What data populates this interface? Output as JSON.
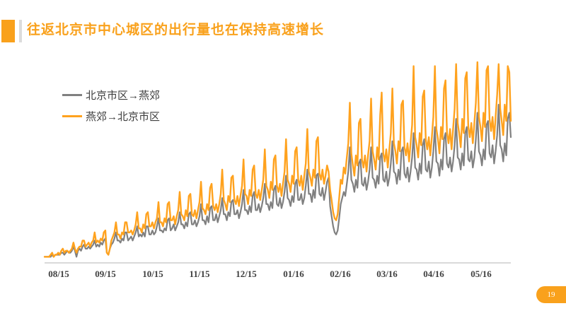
{
  "slide": {
    "title": "往返北京市中心城区的出行量也在保持高速增长",
    "page_number": "19",
    "accent_color": "#F9A11C"
  },
  "legend": {
    "items": [
      {
        "label": "北京市区→燕郊",
        "color": "#808080"
      },
      {
        "label": "燕郊→北京市区",
        "color": "#FFA21E"
      }
    ]
  },
  "chart_data": {
    "type": "line",
    "title": "",
    "xlabel": "",
    "ylabel": "",
    "categories": [
      "08/15",
      "09/15",
      "10/15",
      "11/15",
      "12/15",
      "01/16",
      "02/16",
      "03/16",
      "04/16",
      "05/16"
    ],
    "x_unit": "daily points from Aug 2015 to early Jun 2016",
    "ylim": [
      0,
      100
    ],
    "y_units": "relative trip volume (y axis not labeled in original)",
    "grid": false,
    "y_axis_shown": false,
    "legend_position": "inside top-left",
    "annotations": [
      "sharp dip around early Feb 2016 (Chinese New Year week)",
      "strong upward trend with weekly spikes"
    ],
    "series": [
      {
        "name": "北京市区→燕郊",
        "color": "#808080",
        "values": [
          3,
          3,
          3,
          3,
          3,
          4,
          3,
          4,
          4,
          4,
          4,
          5,
          5,
          4,
          5,
          6,
          5,
          5,
          6,
          8,
          6,
          3,
          6,
          7,
          6,
          8,
          9,
          7,
          7,
          8,
          7,
          8,
          9,
          11,
          8,
          9,
          8,
          10,
          9,
          11,
          12,
          5,
          4,
          7,
          9,
          10,
          12,
          15,
          11,
          11,
          10,
          12,
          11,
          15,
          15,
          11,
          12,
          13,
          11,
          13,
          15,
          18,
          13,
          14,
          13,
          15,
          13,
          18,
          18,
          14,
          14,
          16,
          14,
          15,
          18,
          22,
          16,
          16,
          15,
          17,
          16,
          21,
          22,
          16,
          17,
          19,
          16,
          18,
          20,
          25,
          19,
          19,
          17,
          20,
          18,
          24,
          25,
          19,
          19,
          21,
          18,
          20,
          23,
          29,
          21,
          21,
          19,
          23,
          20,
          27,
          28,
          21,
          21,
          24,
          20,
          23,
          26,
          32,
          24,
          24,
          21,
          25,
          23,
          30,
          31,
          24,
          24,
          26,
          22,
          25,
          29,
          36,
          26,
          26,
          24,
          28,
          25,
          33,
          35,
          26,
          26,
          29,
          25,
          28,
          32,
          39,
          29,
          29,
          26,
          30,
          27,
          36,
          38,
          29,
          28,
          32,
          27,
          30,
          35,
          43,
          32,
          31,
          28,
          33,
          30,
          39,
          41,
          31,
          31,
          34,
          29,
          32,
          38,
          46,
          34,
          34,
          30,
          36,
          32,
          43,
          44,
          34,
          33,
          37,
          31,
          35,
          40,
          42,
          28,
          23,
          18,
          15,
          14,
          16,
          22,
          29,
          32,
          35,
          33,
          39,
          45,
          57,
          41,
          39,
          35,
          41,
          37,
          49,
          51,
          39,
          38,
          42,
          36,
          40,
          46,
          57,
          42,
          41,
          37,
          43,
          39,
          52,
          54,
          41,
          40,
          45,
          38,
          42,
          49,
          60,
          45,
          44,
          39,
          46,
          41,
          55,
          57,
          44,
          42,
          47,
          40,
          45,
          52,
          64,
          47,
          46,
          41,
          49,
          44,
          58,
          61,
          46,
          45,
          50,
          42,
          47,
          55,
          67,
          50,
          49,
          43,
          51,
          46,
          61,
          64,
          49,
          47,
          52,
          45,
          50,
          58,
          71,
          52,
          51,
          46,
          54,
          48,
          64,
          67,
          51,
          50,
          55,
          47,
          52,
          61,
          74,
          55,
          53,
          48,
          56,
          51,
          68,
          70,
          54,
          52,
          58,
          49,
          55,
          63,
          78,
          58,
          56,
          50,
          59,
          53,
          71,
          74,
          62
        ]
      },
      {
        "name": "燕郊→北京市区",
        "color": "#FFA21E",
        "values": [
          3,
          3,
          3,
          3,
          4,
          5,
          3,
          4,
          4,
          5,
          4,
          6,
          7,
          5,
          6,
          6,
          5,
          6,
          7,
          10,
          7,
          5,
          7,
          8,
          8,
          11,
          11,
          8,
          9,
          10,
          8,
          10,
          11,
          15,
          10,
          11,
          10,
          12,
          11,
          15,
          16,
          5,
          4,
          7,
          11,
          13,
          15,
          20,
          14,
          14,
          12,
          15,
          14,
          20,
          20,
          15,
          15,
          16,
          14,
          16,
          19,
          25,
          17,
          17,
          15,
          19,
          17,
          24,
          25,
          18,
          18,
          20,
          17,
          20,
          22,
          30,
          20,
          20,
          18,
          22,
          20,
          29,
          30,
          21,
          21,
          23,
          19,
          23,
          26,
          35,
          24,
          23,
          21,
          26,
          23,
          33,
          34,
          24,
          23,
          26,
          22,
          26,
          30,
          40,
          27,
          26,
          24,
          29,
          26,
          37,
          39,
          28,
          26,
          29,
          25,
          29,
          34,
          46,
          31,
          29,
          26,
          33,
          30,
          42,
          43,
          31,
          29,
          33,
          28,
          33,
          38,
          51,
          34,
          33,
          29,
          36,
          33,
          46,
          48,
          34,
          32,
          36,
          31,
          36,
          41,
          56,
          38,
          36,
          32,
          40,
          36,
          51,
          53,
          38,
          35,
          39,
          33,
          39,
          45,
          61,
          41,
          39,
          35,
          43,
          39,
          55,
          57,
          41,
          38,
          43,
          36,
          43,
          49,
          66,
          45,
          42,
          38,
          46,
          42,
          60,
          62,
          44,
          41,
          46,
          39,
          43,
          48,
          45,
          36,
          31,
          25,
          22,
          21,
          24,
          32,
          41,
          39,
          47,
          44,
          52,
          59,
          79,
          54,
          48,
          43,
          53,
          48,
          69,
          71,
          51,
          47,
          53,
          45,
          53,
          60,
          81,
          55,
          51,
          46,
          57,
          51,
          73,
          84,
          54,
          50,
          56,
          47,
          56,
          64,
          86,
          59,
          55,
          49,
          60,
          55,
          78,
          80,
          57,
          53,
          59,
          50,
          59,
          68,
          97,
          62,
          58,
          52,
          64,
          58,
          82,
          85,
          61,
          56,
          62,
          53,
          62,
          72,
          97,
          66,
          61,
          54,
          67,
          61,
          86,
          90,
          64,
          59,
          66,
          56,
          66,
          76,
          98,
          69,
          64,
          57,
          71,
          64,
          91,
          94,
          67,
          62,
          69,
          59,
          69,
          79,
          99,
          72,
          67,
          60,
          74,
          67,
          95,
          97,
          71,
          65,
          72,
          61,
          72,
          83,
          98,
          76,
          70,
          63,
          78,
          70,
          97,
          94,
          70
        ]
      }
    ]
  }
}
